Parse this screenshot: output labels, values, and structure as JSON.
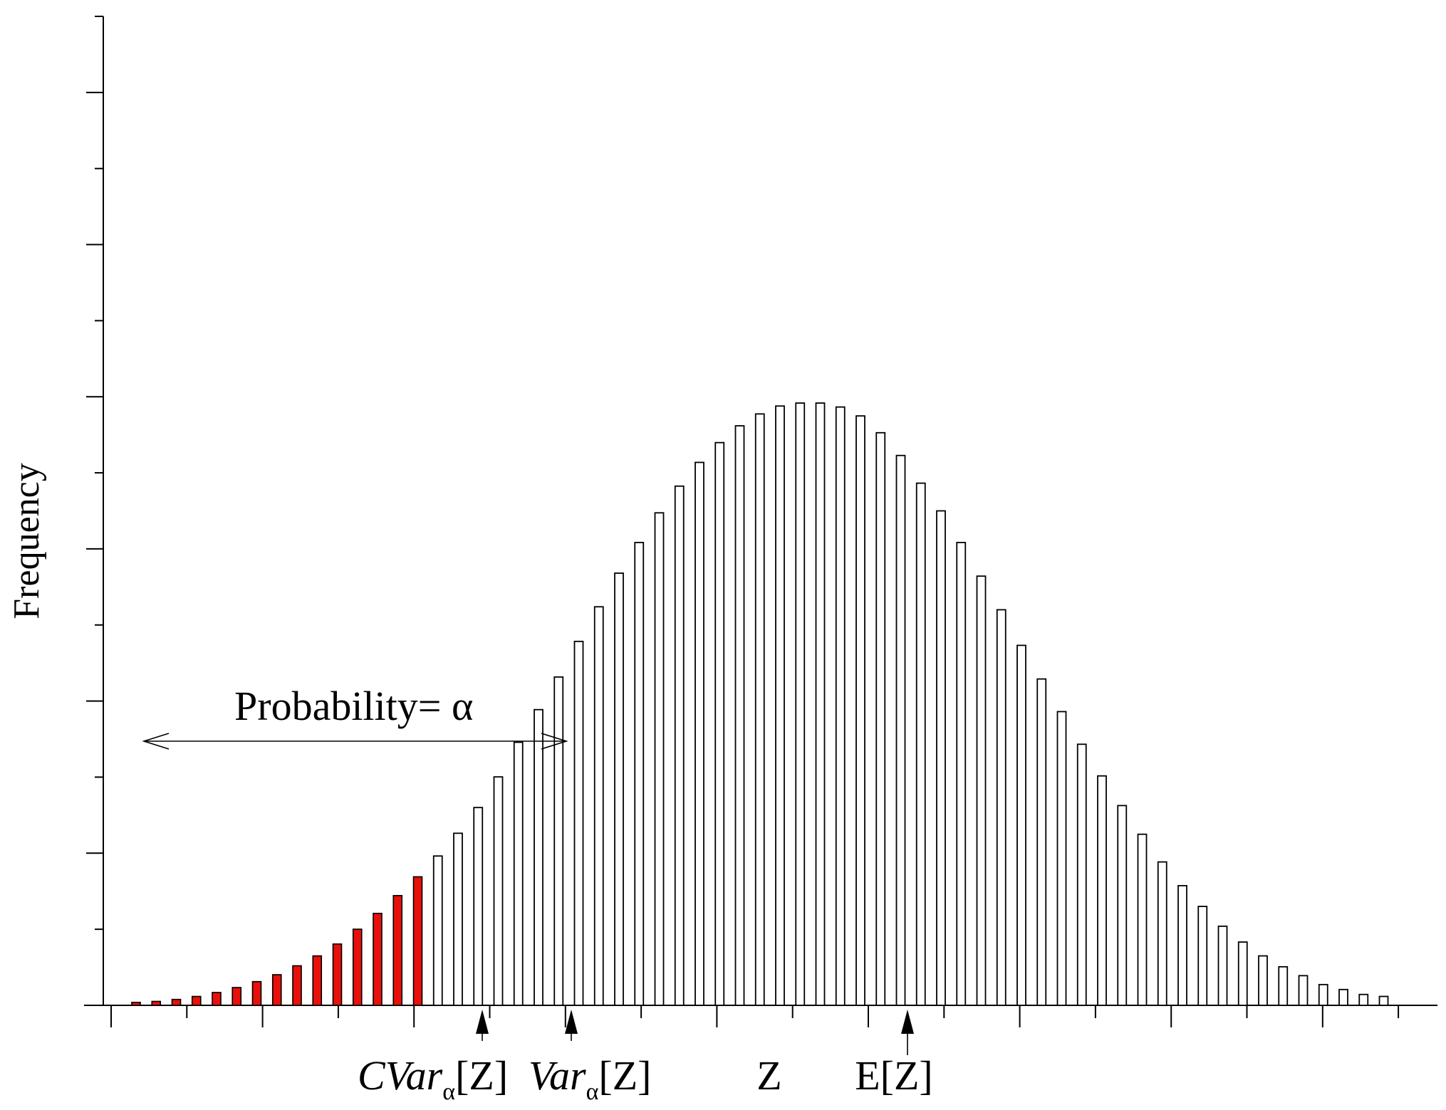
{
  "chart_data": {
    "type": "bar",
    "title": "",
    "xlabel": "Z",
    "ylabel": "Frequency",
    "xlim": [
      0,
      100
    ],
    "ylim": [
      0,
      100
    ],
    "grid": false,
    "tail_count": 15,
    "values": [
      0.3,
      0.4,
      0.6,
      0.9,
      1.3,
      1.8,
      2.4,
      3.1,
      4.0,
      5.0,
      6.2,
      7.7,
      9.3,
      11.1,
      13.0,
      15.1,
      17.4,
      20.0,
      23.1,
      26.6,
      29.9,
      33.2,
      36.8,
      40.3,
      43.7,
      46.8,
      49.8,
      52.5,
      54.9,
      56.9,
      58.6,
      59.8,
      60.6,
      60.9,
      60.9,
      60.5,
      59.6,
      57.9,
      55.6,
      52.8,
      50.0,
      46.8,
      43.4,
      40.0,
      36.4,
      33.0,
      29.7,
      26.4,
      23.2,
      20.2,
      17.3,
      14.5,
      12.1,
      10.0,
      8.0,
      6.4,
      5.0,
      3.9,
      3.0,
      2.1,
      1.6,
      1.1,
      0.9
    ],
    "annotations": {
      "probability": {
        "label": "Probability= ",
        "symbol": "α"
      },
      "cvar": {
        "base": "CVar",
        "sub": "α",
        "arg": "[Z]"
      },
      "var": {
        "base": "Var",
        "sub": "α",
        "arg": "[Z]"
      },
      "mean": {
        "label": "E[Z]"
      }
    },
    "colors": {
      "tail": "#e8100a",
      "body": "#ffffff",
      "stroke": "#000000"
    }
  }
}
